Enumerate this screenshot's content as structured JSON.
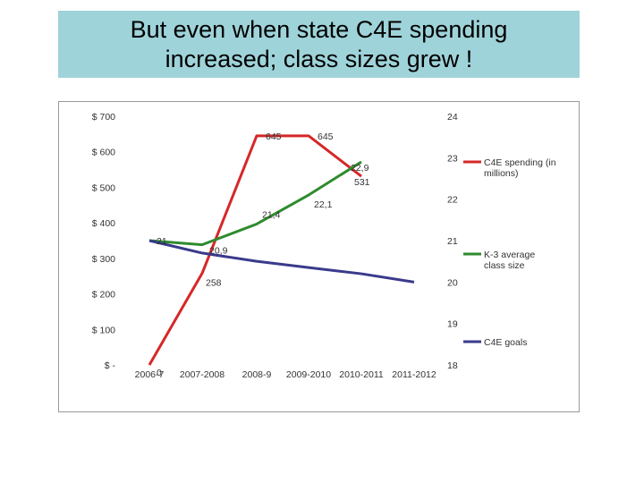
{
  "title": "But even when state C4E spending increased; class sizes grew !",
  "chart_data": {
    "type": "line",
    "categories": [
      "2006-7",
      "2007-2008",
      "2008-9",
      "2009-2010",
      "2010-2011",
      "2011-2012"
    ],
    "left_axis": {
      "ylim": [
        0,
        700
      ],
      "ticks": [
        "$ -",
        "$ 100",
        "$ 200",
        "$ 300",
        "$ 400",
        "$ 500",
        "$ 600",
        "$ 700"
      ]
    },
    "right_axis": {
      "ylim": [
        18,
        24
      ],
      "ticks": [
        "18",
        "19",
        "20",
        "21",
        "22",
        "23",
        "24"
      ]
    },
    "series": [
      {
        "name": "C4E spending (in millions)",
        "axis": "left",
        "color": "#d62728",
        "values": [
          0,
          258,
          645,
          645,
          531,
          null
        ],
        "value_labels": [
          "0",
          "258",
          "645",
          "645",
          "531",
          ""
        ]
      },
      {
        "name": "K-3 average class size",
        "axis": "right",
        "color": "#2e8b2e",
        "values": [
          21,
          20.9,
          21.4,
          22.1,
          22.9,
          null
        ],
        "value_labels": [
          "21",
          "20,9",
          "21,4",
          "22,1",
          "22,9",
          ""
        ]
      },
      {
        "name": "C4E goals",
        "axis": "right",
        "color": "#3a3a8c",
        "values": [
          21,
          20.7,
          20.5,
          20.35,
          20.2,
          20
        ],
        "value_labels": []
      }
    ],
    "grid": false,
    "legend": "right"
  }
}
